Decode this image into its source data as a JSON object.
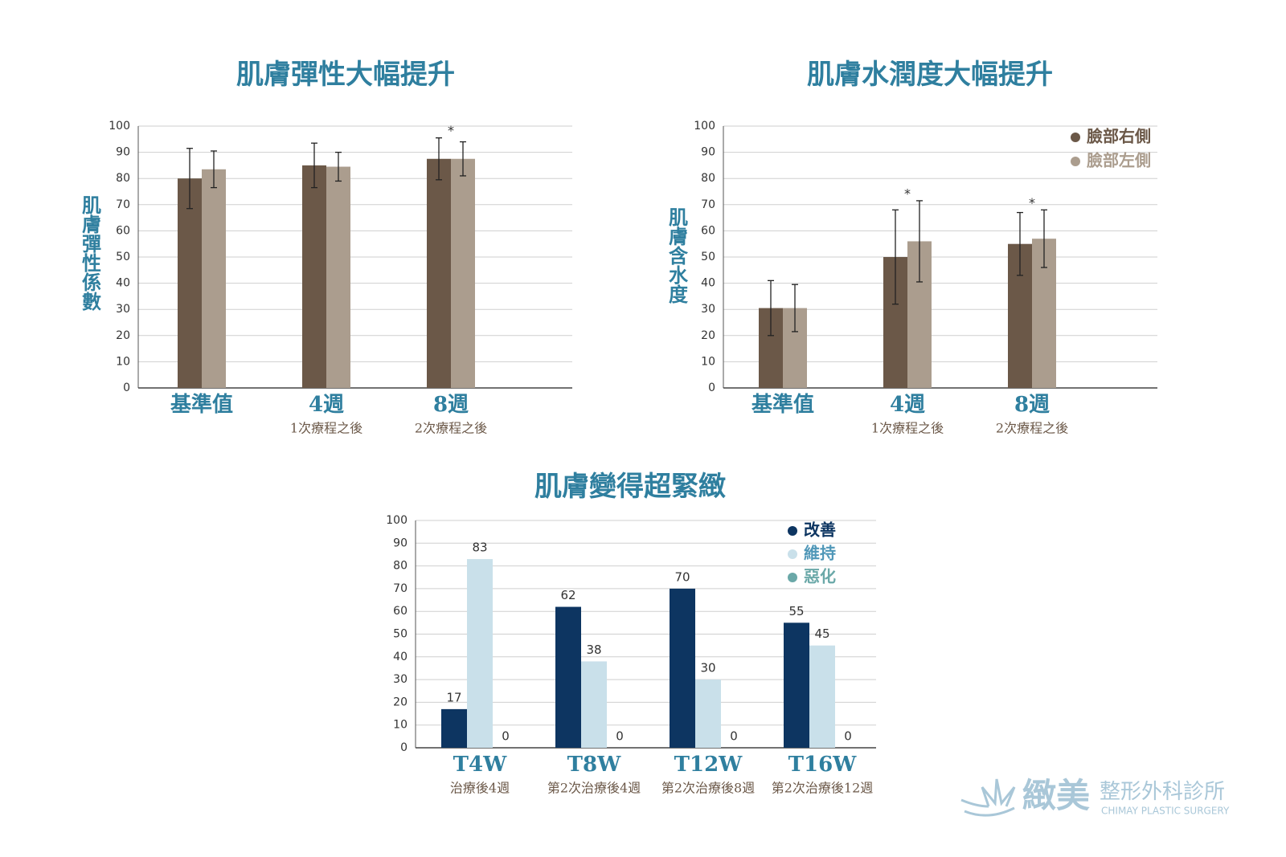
{
  "chart_data": [
    {
      "type": "bar",
      "title": "肌膚彈性大幅提升",
      "y_label": "肌膚彈性係數",
      "categories": [
        "基準值",
        "4週",
        "8週"
      ],
      "sublabels": [
        null,
        "1次療程之後",
        "2次療程之後"
      ],
      "markers": [
        null,
        null,
        "*"
      ],
      "series": [
        {
          "color": "#6b5848",
          "values": [
            80,
            85,
            87.5
          ],
          "errors": [
            11.5,
            8.5,
            8
          ]
        },
        {
          "color": "#ab9d8e",
          "values": [
            83.5,
            84.5,
            87.5
          ],
          "errors": [
            7,
            5.5,
            6.5
          ]
        }
      ],
      "ylim": [
        0,
        100
      ],
      "yticks": [
        0,
        10,
        20,
        30,
        40,
        50,
        60,
        70,
        80,
        90,
        100
      ],
      "grid": true
    },
    {
      "type": "bar",
      "title": "肌膚水潤度大幅提升",
      "y_label": "肌膚含水度",
      "categories": [
        "基準值",
        "4週",
        "8週"
      ],
      "sublabels": [
        null,
        "1次療程之後",
        "2次療程之後"
      ],
      "markers": [
        null,
        "*",
        "*"
      ],
      "legend": "upper right",
      "series": [
        {
          "name": "臉部右側",
          "color": "#6b5848",
          "values": [
            30.5,
            50,
            55
          ],
          "errors": [
            10.5,
            18,
            12
          ]
        },
        {
          "name": "臉部左側",
          "color": "#ab9d8e",
          "values": [
            30.5,
            56,
            57
          ],
          "errors": [
            9,
            15.5,
            11
          ]
        }
      ],
      "ylim": [
        0,
        100
      ],
      "yticks": [
        0,
        10,
        20,
        30,
        40,
        50,
        60,
        70,
        80,
        90,
        100
      ],
      "grid": true
    },
    {
      "type": "bar",
      "title": "肌膚變得超緊緻",
      "categories": [
        "T4W",
        "T8W",
        "T12W",
        "T16W"
      ],
      "sublabels": [
        "治療後4週",
        "第2次治療後4週",
        "第2次治療後8週",
        "第2次治療後12週"
      ],
      "legend": "upper right",
      "data_labels": true,
      "series": [
        {
          "name": "改善",
          "color": "#0d3561",
          "values": [
            17,
            62,
            70,
            55
          ]
        },
        {
          "name": "維持",
          "color": "#c9e0ea",
          "values": [
            83,
            38,
            30,
            45
          ]
        },
        {
          "name": "惡化",
          "color": "#6aa8a8",
          "values": [
            0,
            0,
            0,
            0
          ]
        }
      ],
      "ylim": [
        0,
        100
      ],
      "yticks": [
        0,
        10,
        20,
        30,
        40,
        50,
        60,
        70,
        80,
        90,
        100
      ],
      "grid": true
    }
  ],
  "logo": {
    "name": "緻美",
    "subtitle": "整形外科診所",
    "english": "CHIMAY PLASTIC SURGERY"
  }
}
